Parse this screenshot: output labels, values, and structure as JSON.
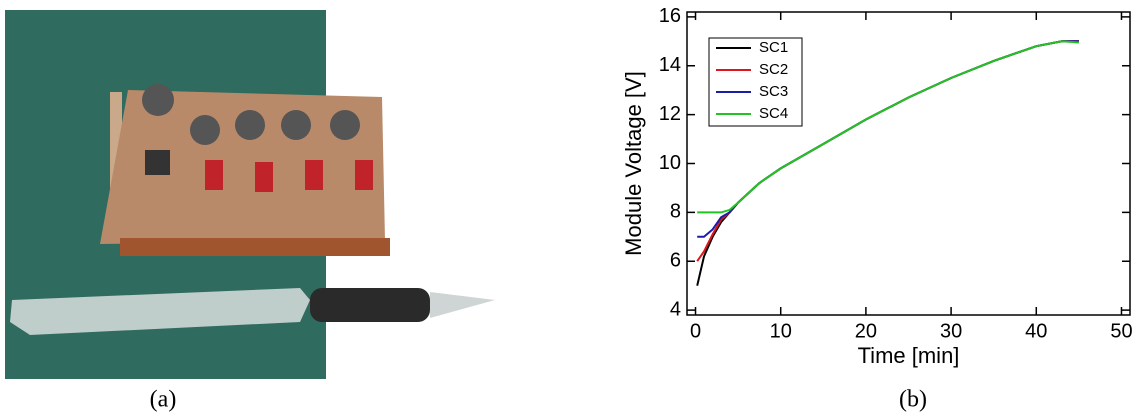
{
  "photo": {
    "caption": "(a)"
  },
  "chart_data": {
    "type": "line",
    "caption": "(b)",
    "xlabel": "Time [min]",
    "ylabel": "Module Voltage [V]",
    "x": [
      0.2,
      1,
      2,
      3,
      4,
      5,
      7.5,
      10,
      15,
      20,
      25,
      30,
      35,
      40,
      43,
      45
    ],
    "series": [
      {
        "name": "SC1",
        "color": "#000000",
        "values": [
          5.0,
          6.2,
          7.0,
          7.6,
          8.0,
          8.4,
          9.2,
          9.8,
          10.8,
          11.8,
          12.7,
          13.5,
          14.2,
          14.8,
          15.0,
          15.0
        ]
      },
      {
        "name": "SC2",
        "color": "#e0141e",
        "values": [
          6.0,
          6.4,
          7.1,
          7.7,
          8.0,
          8.4,
          9.2,
          9.8,
          10.8,
          11.8,
          12.7,
          13.5,
          14.2,
          14.8,
          15.0,
          15.0
        ]
      },
      {
        "name": "SC3",
        "color": "#1c1ca8",
        "values": [
          7.0,
          7.0,
          7.3,
          7.8,
          8.0,
          8.4,
          9.2,
          9.8,
          10.8,
          11.8,
          12.7,
          13.5,
          14.2,
          14.8,
          15.0,
          15.0
        ]
      },
      {
        "name": "SC4",
        "color": "#22c422",
        "values": [
          8.0,
          8.0,
          8.0,
          8.0,
          8.1,
          8.4,
          9.2,
          9.8,
          10.8,
          11.8,
          12.7,
          13.5,
          14.2,
          14.8,
          15.0,
          14.95
        ]
      }
    ],
    "xlim": [
      -1,
      51
    ],
    "ylim": [
      3.8,
      16.2
    ],
    "xticks": [
      0,
      10,
      20,
      30,
      40,
      50
    ],
    "yticks": [
      4,
      6,
      8,
      10,
      12,
      14,
      16
    ],
    "legend": "upper-left"
  }
}
